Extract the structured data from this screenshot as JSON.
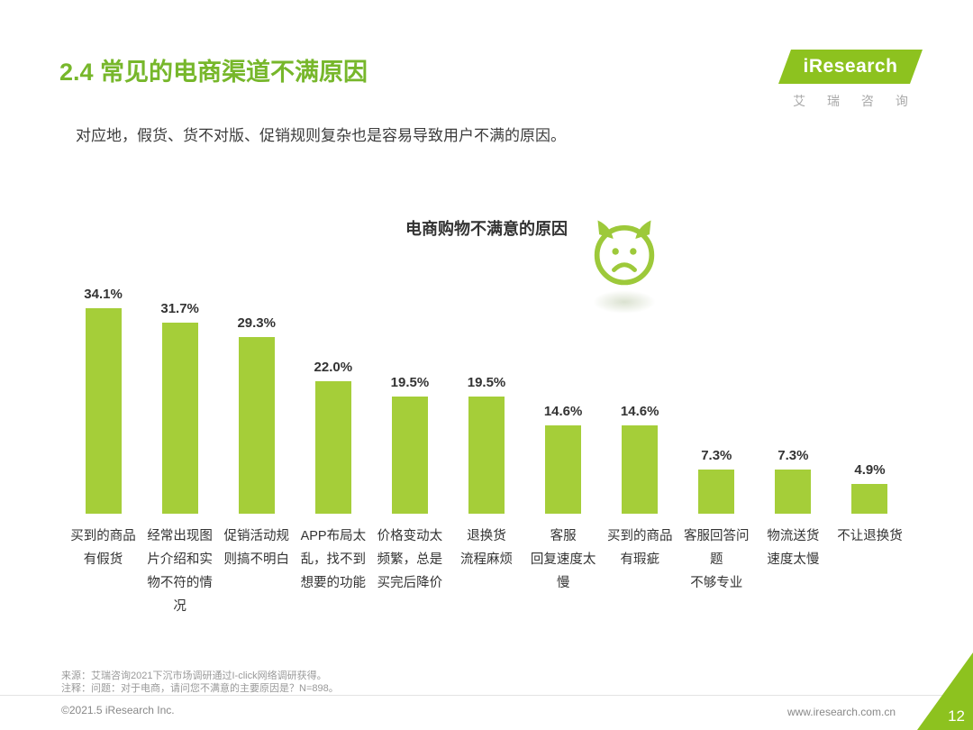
{
  "page": {
    "title": "2.4 常见的电商渠道不满原因",
    "subtitle": "对应地，假货、货不对版、促销规则复杂也是容易导致用户不满的原因。",
    "source_note": "来源：艾瑞咨询2021下沉市场调研通过I-click网络调研获得。",
    "annotation_note": "注释：问题：对于电商，请问您不满意的主要原因是？N=898。",
    "copyright": "©2021.5 iResearch Inc.",
    "website": "www.iresearch.com.cn",
    "page_number": "12"
  },
  "logo": {
    "brand": "iResearch",
    "brand_cn": "艾 瑞 咨 询"
  },
  "colors": {
    "title_green": "#77B72B",
    "logo_green": "#8DC21F",
    "bar_green": "#A5CE39",
    "icon_green": "#9DC93A",
    "text_dark": "#333333",
    "text_gray": "#999999"
  },
  "chart_data": {
    "type": "bar",
    "title": "电商购物不满意的原因",
    "categories": [
      "买到的商品有假货",
      "经常出现图片介绍和实物不符的情况",
      "促销活动规则搞不明白",
      "APP布局太乱，找不到想要的功能",
      "价格变动太频繁，总是买完后降价",
      "退换货流程麻烦",
      "客服回复速度太慢",
      "买到的商品有瑕疵",
      "客服回答问题不够专业",
      "物流送货速度太慢",
      "不让退换货"
    ],
    "category_display": [
      "买到的商品\n有假货",
      "经常出现图\n片介绍和实\n物不符的情\n况",
      "促销活动规\n则搞不明白",
      "APP布局太\n乱，找不到\n想要的功能",
      "价格变动太\n频繁，总是\n买完后降价",
      "退换货\n流程麻烦",
      "客服\n回复速度太\n慢",
      "买到的商品\n有瑕疵",
      "客服回答问\n题\n不够专业",
      "物流送货\n速度太慢",
      "不让退换货"
    ],
    "values": [
      34.1,
      31.7,
      29.3,
      22.0,
      19.5,
      19.5,
      14.6,
      14.6,
      7.3,
      7.3,
      4.9
    ],
    "value_labels": [
      "34.1%",
      "31.7%",
      "29.3%",
      "22.0%",
      "19.5%",
      "19.5%",
      "14.6%",
      "14.6%",
      "7.3%",
      "7.3%",
      "4.9%"
    ],
    "ylim": [
      0,
      36
    ],
    "grid": false,
    "legend": false,
    "xlabel": "",
    "ylabel": ""
  }
}
